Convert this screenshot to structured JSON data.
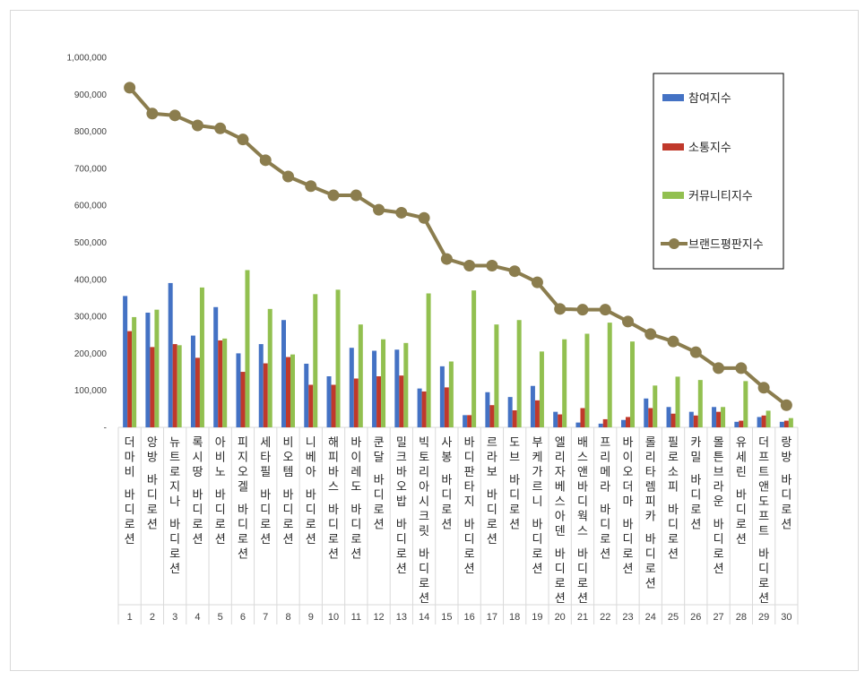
{
  "chart_data": {
    "type": "bar",
    "title": "",
    "xlabel": "",
    "ylabel": "",
    "ylim": [
      0,
      1000000
    ],
    "y_ticks": [
      "-",
      "100,000",
      "200,000",
      "300,000",
      "400,000",
      "500,000",
      "600,000",
      "700,000",
      "800,000",
      "900,000",
      "1,000,000"
    ],
    "grid": false,
    "legend_position": "top-right",
    "ranks": [
      "1",
      "2",
      "3",
      "4",
      "5",
      "6",
      "7",
      "8",
      "9",
      "10",
      "11",
      "12",
      "13",
      "14",
      "15",
      "16",
      "17",
      "18",
      "19",
      "20",
      "21",
      "22",
      "23",
      "24",
      "25",
      "26",
      "27",
      "28",
      "29",
      "30"
    ],
    "categories": [
      "더마비 바디로션",
      "앙방 바디로션",
      "뉴트로지나 바디로션",
      "록시땅 바디로션",
      "아비노 바디로션",
      "피지오겔 바디로션",
      "세타필 바디로션",
      "비오템 바디로션",
      "니베아 바디로션",
      "해피바스 바디로션",
      "바이레도 바디로션",
      "쿤달 바디로션",
      "밀크바오밥 바디로션",
      "빅토리아시크릿 바디로션",
      "사봉 바디로션",
      "바디판타지 바디로션",
      "르라보 바디로션",
      "도브 바디로션",
      "부케가르니 바디로션",
      "엘리자베스아덴 바디로션",
      "배스앤바디웍스 바디로션",
      "프리메라 바디로션",
      "바이오더마 바디로션",
      "롤리타렘피카 바디로션",
      "필로소피 바디로션",
      "카밀 바디로션",
      "몰튼브라운 바디로션",
      "유세린 바디로션",
      "더프트앤도프트 바디로션",
      "랑방 바디로션"
    ],
    "series": [
      {
        "name": "참여지수",
        "type": "bar",
        "color": "#4472c4",
        "values": [
          355000,
          310000,
          390000,
          248000,
          325000,
          200000,
          225000,
          290000,
          172000,
          138000,
          215000,
          207000,
          210000,
          105000,
          165000,
          33000,
          95000,
          82000,
          112000,
          42000,
          13000,
          10000,
          20000,
          78000,
          55000,
          42000,
          55000,
          15000,
          28000,
          15000
        ]
      },
      {
        "name": "소통지수",
        "type": "bar",
        "color": "#c0392b",
        "values": [
          260000,
          217000,
          225000,
          188000,
          235000,
          150000,
          173000,
          190000,
          115000,
          115000,
          132000,
          138000,
          140000,
          97000,
          108000,
          33000,
          60000,
          46000,
          73000,
          35000,
          52000,
          22000,
          28000,
          52000,
          37000,
          32000,
          42000,
          18000,
          32000,
          18000
        ]
      },
      {
        "name": "커뮤니티지수",
        "type": "bar",
        "color": "#92c050",
        "values": [
          298000,
          318000,
          222000,
          378000,
          240000,
          425000,
          320000,
          197000,
          360000,
          372000,
          278000,
          238000,
          228000,
          362000,
          178000,
          370000,
          278000,
          290000,
          205000,
          238000,
          253000,
          283000,
          232000,
          113000,
          137000,
          128000,
          55000,
          125000,
          45000,
          25000
        ]
      },
      {
        "name": "브랜드평판지수",
        "type": "line",
        "color": "#8b7d4e",
        "values": [
          918000,
          848000,
          843000,
          816000,
          808000,
          778000,
          722000,
          678000,
          652000,
          627000,
          627000,
          588000,
          580000,
          566000,
          455000,
          437000,
          437000,
          422000,
          392000,
          320000,
          318000,
          318000,
          286000,
          252000,
          232000,
          203000,
          160000,
          160000,
          107000,
          60000
        ]
      }
    ]
  }
}
